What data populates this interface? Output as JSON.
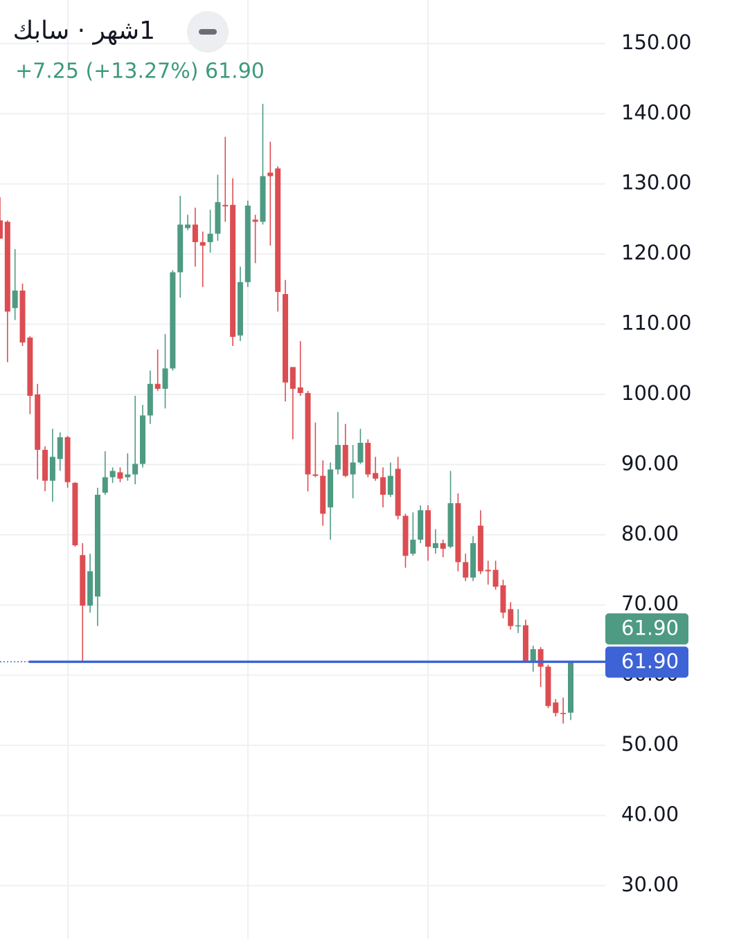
{
  "chart_data": {
    "type": "candlestick",
    "title": "1شهر · سابك",
    "change_label": "+7.25 (+13.27%)",
    "price_label": "61.90",
    "open": [
      124.8,
      124.6,
      112.3,
      114.8,
      108.1,
      100.0,
      92.1,
      87.7,
      90.8,
      93.9,
      87.4,
      77.1,
      69.9,
      71.2,
      86.0,
      88.2,
      88.9,
      88.2,
      88.6,
      90.1,
      97.0,
      101.5,
      100.8,
      103.7,
      117.4,
      123.7,
      124.2,
      121.7,
      121.7,
      122.9,
      127.0,
      127.0,
      108.4,
      116.0,
      124.9,
      124.6,
      131.6,
      132.2,
      114.3,
      103.9,
      101.0,
      100.2,
      88.6,
      88.4,
      83.9,
      89.3,
      92.8,
      88.6,
      90.3,
      93.1,
      88.8,
      88.2,
      85.7,
      89.4,
      82.7,
      77.3,
      79.3,
      83.5,
      78.1,
      78.8,
      78.3,
      84.5,
      76.1,
      73.9,
      81.3,
      75.0,
      75.0,
      72.8,
      69.4,
      67.0,
      67.1,
      62.0,
      63.7,
      61.2,
      56.1,
      54.6,
      54.65
    ],
    "high": [
      128.1,
      124.8,
      120.7,
      115.8,
      108.3,
      101.5,
      92.6,
      95.1,
      94.6,
      94.1,
      87.5,
      78.8,
      77.3,
      86.7,
      91.9,
      89.6,
      89.6,
      91.6,
      99.8,
      98.5,
      103.4,
      106.4,
      108.6,
      117.7,
      128.3,
      125.6,
      126.6,
      123.2,
      126.3,
      131.3,
      136.7,
      130.8,
      118.2,
      127.6,
      125.6,
      141.4,
      136.0,
      132.5,
      116.3,
      103.9,
      107.6,
      100.5,
      96.0,
      90.6,
      90.3,
      97.5,
      95.8,
      92.8,
      95.1,
      93.6,
      91.1,
      89.6,
      90.3,
      91.1,
      83.0,
      83.2,
      84.2,
      84.2,
      80.8,
      79.3,
      89.1,
      85.9,
      77.3,
      79.8,
      83.5,
      76.3,
      76.3,
      73.6,
      70.4,
      69.4,
      67.9,
      64.2,
      64.0,
      61.5,
      56.6,
      56.8,
      62.0
    ],
    "low": [
      122.2,
      104.6,
      110.6,
      106.9,
      97.2,
      87.9,
      86.2,
      84.7,
      89.1,
      86.7,
      78.3,
      61.8,
      68.9,
      67.0,
      85.7,
      87.4,
      87.5,
      87.7,
      87.2,
      89.6,
      95.8,
      100.5,
      98.0,
      103.4,
      113.8,
      123.4,
      118.2,
      115.3,
      120.2,
      121.9,
      124.6,
      106.9,
      107.6,
      115.3,
      118.7,
      124.2,
      121.2,
      111.8,
      99.0,
      93.6,
      99.8,
      86.2,
      88.2,
      81.3,
      79.3,
      88.6,
      88.2,
      85.2,
      90.1,
      88.2,
      87.7,
      83.9,
      85.4,
      82.2,
      75.3,
      77.0,
      78.8,
      76.3,
      77.3,
      76.8,
      78.1,
      74.8,
      73.4,
      73.4,
      74.4,
      72.9,
      72.2,
      68.1,
      66.5,
      66.0,
      61.8,
      60.5,
      58.3,
      55.3,
      54.1,
      53.1,
      53.6
    ],
    "close": [
      122.2,
      111.8,
      114.8,
      107.4,
      99.8,
      92.1,
      87.7,
      91.1,
      93.9,
      87.5,
      78.5,
      69.9,
      74.8,
      85.7,
      88.2,
      89.1,
      88.0,
      88.6,
      90.1,
      97.0,
      101.5,
      100.8,
      103.7,
      117.4,
      124.2,
      124.2,
      121.7,
      121.2,
      122.9,
      127.4,
      126.8,
      108.2,
      116.0,
      126.9,
      124.6,
      131.1,
      131.1,
      114.6,
      101.7,
      100.8,
      100.2,
      88.6,
      88.4,
      83.0,
      89.3,
      92.8,
      88.4,
      90.3,
      93.1,
      88.6,
      88.0,
      85.7,
      88.4,
      82.7,
      77.0,
      79.3,
      83.5,
      78.3,
      78.8,
      78.0,
      84.5,
      76.1,
      73.9,
      78.8,
      74.8,
      74.8,
      72.6,
      68.9,
      67.0,
      67.1,
      62.0,
      63.7,
      61.2,
      55.6,
      54.6,
      54.6,
      61.9
    ],
    "up_color": "#4e9a83",
    "down_color": "#dc4d52",
    "ylim": [
      22.4,
      156.2
    ],
    "yticks": [
      {
        "value": 30,
        "label": "30.00"
      },
      {
        "value": 40,
        "label": "40.00"
      },
      {
        "value": 50,
        "label": "50.00"
      },
      {
        "value": 60,
        "label": "60.00"
      },
      {
        "value": 70,
        "label": "70.00"
      },
      {
        "value": 80,
        "label": "80.00"
      },
      {
        "value": 90,
        "label": "90.00"
      },
      {
        "value": 100,
        "label": "100.00"
      },
      {
        "value": 110,
        "label": "110.00"
      },
      {
        "value": 120,
        "label": "120.00"
      },
      {
        "value": 130,
        "label": "130.00"
      },
      {
        "value": 140,
        "label": "140.00"
      },
      {
        "value": 150,
        "label": "150.00"
      }
    ],
    "grid": true,
    "last_price": {
      "value": 61.9,
      "label": "61.90"
    },
    "crosshair_price": {
      "value": 61.9,
      "label": "61.90"
    },
    "crosshair_color": "#3d63d6"
  }
}
